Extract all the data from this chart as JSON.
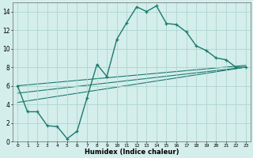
{
  "xlabel": "Humidex (Indice chaleur)",
  "background_color": "#d4eeeb",
  "grid_color": "#aed4cf",
  "line_color": "#1a7a6e",
  "xlim": [
    -0.5,
    23.5
  ],
  "ylim": [
    0,
    15
  ],
  "xticks": [
    0,
    1,
    2,
    3,
    4,
    5,
    6,
    7,
    8,
    9,
    10,
    11,
    12,
    13,
    14,
    15,
    16,
    17,
    18,
    19,
    20,
    21,
    22,
    23
  ],
  "yticks": [
    0,
    2,
    4,
    6,
    8,
    10,
    12,
    14
  ],
  "main_curve_x": [
    0,
    1,
    2,
    3,
    4,
    5,
    6,
    7,
    8,
    9,
    10,
    11,
    12,
    13,
    14,
    15,
    16,
    17,
    18,
    19,
    20,
    21,
    22,
    23
  ],
  "main_curve_y": [
    6.0,
    3.2,
    3.2,
    1.7,
    1.6,
    0.3,
    1.1,
    4.7,
    8.3,
    7.0,
    11.0,
    12.8,
    14.5,
    14.0,
    14.6,
    12.7,
    12.6,
    11.8,
    10.3,
    9.8,
    9.0,
    8.8,
    8.0,
    8.0
  ],
  "line1_x": [
    0,
    23
  ],
  "line1_y": [
    6.0,
    8.2
  ],
  "line2_x": [
    0,
    23
  ],
  "line2_y": [
    5.2,
    8.0
  ],
  "line3_x": [
    0,
    23
  ],
  "line3_y": [
    4.2,
    8.0
  ]
}
